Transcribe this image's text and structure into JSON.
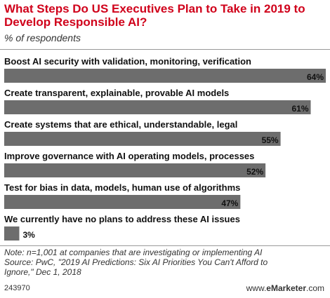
{
  "header": {
    "title": "What Steps Do US Executives Plan to Take in 2019 to Develop Responsible AI?",
    "subtitle": "% of respondents"
  },
  "chart_data": {
    "type": "bar",
    "orientation": "horizontal",
    "categories": [
      "Boost AI security with validation, monitoring, verification",
      "Create transparent, explainable, provable AI models",
      "Create systems that are ethical, understandable, legal",
      "Improve governance with AI operating models, processes",
      "Test for bias in data, models, human use of algorithms",
      "We currently have no plans to address these AI issues"
    ],
    "values": [
      64,
      61,
      55,
      52,
      47,
      3
    ],
    "value_labels": [
      "64%",
      "61%",
      "55%",
      "52%",
      "47%",
      "3%"
    ],
    "xlim": [
      0,
      64
    ],
    "bar_color": "#6d6d6d",
    "grid": false,
    "legend": "none"
  },
  "footer": {
    "note_lines": [
      "Note: n=1,001 at companies that are investigating or implementing AI",
      "Source: PwC, \"2019 AI Predictions: Six AI Priorities You Can't Afford to",
      "Ignore,\" Dec 1, 2018"
    ],
    "chart_id": "243970",
    "brand_prefix": "www.",
    "brand_name": "eMarketer",
    "brand_suffix": ".com"
  }
}
